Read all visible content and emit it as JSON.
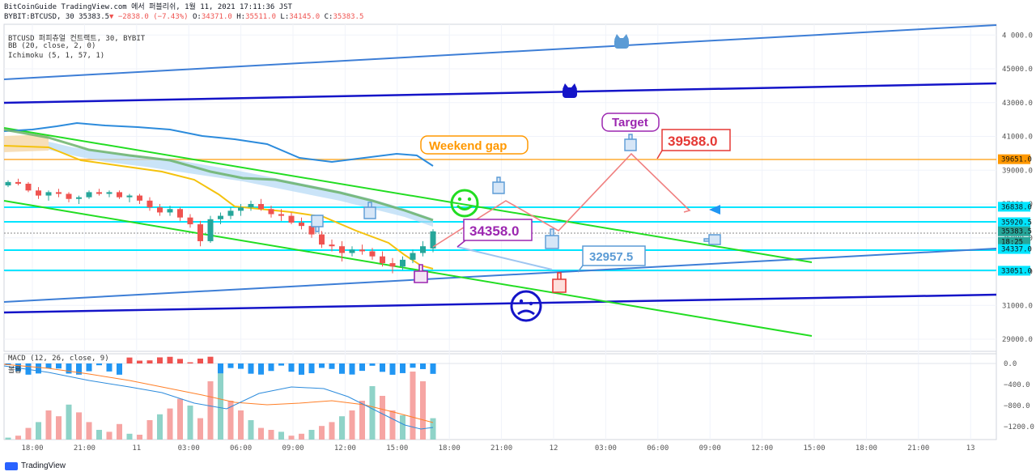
{
  "header": {
    "line1": "BitCoinGuide TradingView.com 에서 퍼블리쉬, 1월 11, 2021 17:11:36 JST",
    "line2_prefix": "BYBIT:BTCUSD, 30 35383.5",
    "change": "−2838.0 (−7.43%)",
    "o_label": "O:",
    "o": "34371.0",
    "h_label": "H:",
    "h": "35511.0",
    "l_label": "L:",
    "l": "34145.0",
    "c_label": "C:",
    "c": "35383.5"
  },
  "legend": {
    "symbol": "BTCUSD 퍼피츄얼 컨트랙트, 30, BYBIT",
    "bb": "BB (20, close, 2, 0)",
    "ichimoku": "Ichimoku (5, 1, 57, 1)",
    "macd": "MACD (12, 26, close, 9)",
    "macd_sub": "볼륨"
  },
  "branding": {
    "tv": "TradingView"
  },
  "colors": {
    "up": "#26a69a",
    "down": "#ef5350",
    "channel_blue": "#3d7ed6",
    "dark_blue": "#1414c8",
    "green": "#22dd22",
    "orange": "#ff9800",
    "cyan": "#00e5ff",
    "bb": "#2c8bdc",
    "ma": "#f4c20d"
  },
  "chart_data": {
    "type": "candlestick",
    "y_axis": {
      "min": 28000,
      "max": 46000,
      "ticks": [
        "29000.0",
        "31000.0",
        "33000.0",
        "35000.0",
        "37000.0",
        "39000.0",
        "41000.0",
        "43000.0",
        "45000.0",
        "4 000.0"
      ]
    },
    "x_axis": {
      "ticks": [
        "18:00",
        "21:00",
        "11",
        "03:00",
        "06:00",
        "09:00",
        "12:00",
        "15:00",
        "18:00",
        "21:00",
        "12",
        "03:00",
        "06:00",
        "09:00",
        "12:00",
        "15:00",
        "18:00",
        "21:00",
        "13"
      ]
    },
    "price_labels": [
      {
        "text": "39651.0",
        "color": "#ff9800"
      },
      {
        "text": "36838.0",
        "color": "#00e5ff"
      },
      {
        "text": "35920.5",
        "color": "#00e5ff"
      },
      {
        "text": "35383.5",
        "color": "#26a69a"
      },
      {
        "text": "18:25",
        "color": "#26a69a"
      },
      {
        "text": "34337.0",
        "color": "#00e5ff"
      },
      {
        "text": "33051.0",
        "color": "#00e5ff"
      }
    ],
    "annotations": [
      {
        "text": "Weekend gap",
        "color": "#ff9800"
      },
      {
        "text": "Target",
        "color": "#9c27b0"
      },
      {
        "text": "39588.0",
        "color": "#e53935"
      },
      {
        "text": "34358.0",
        "color": "#9c27b0"
      },
      {
        "text": "32957.5",
        "color": "#5b9bd5"
      }
    ],
    "macd_axis": {
      "ticks": [
        "0.0",
        "−400.0",
        "−800.0",
        "−1200.0"
      ]
    },
    "candles": [
      [
        38100,
        38400,
        38000,
        38300
      ],
      [
        38300,
        38500,
        38100,
        38200
      ],
      [
        38200,
        38300,
        37700,
        37800
      ],
      [
        37800,
        38000,
        37300,
        37500
      ],
      [
        37500,
        37800,
        37200,
        37700
      ],
      [
        37700,
        37900,
        37400,
        37600
      ],
      [
        37600,
        37700,
        37100,
        37300
      ],
      [
        37300,
        37500,
        37000,
        37400
      ],
      [
        37400,
        37800,
        37300,
        37700
      ],
      [
        37700,
        37900,
        37500,
        37600
      ],
      [
        37600,
        37800,
        37400,
        37700
      ],
      [
        37700,
        37800,
        37300,
        37400
      ],
      [
        37400,
        37600,
        37100,
        37500
      ],
      [
        37500,
        37600,
        37000,
        37200
      ],
      [
        37200,
        37400,
        36600,
        36800
      ],
      [
        36800,
        37000,
        36300,
        36500
      ],
      [
        36500,
        36900,
        36300,
        36700
      ],
      [
        36700,
        36800,
        36000,
        36200
      ],
      [
        36200,
        36400,
        35600,
        35800
      ],
      [
        35800,
        36000,
        34500,
        34800
      ],
      [
        34800,
        36300,
        34700,
        36100
      ],
      [
        36100,
        36500,
        35800,
        36300
      ],
      [
        36300,
        36800,
        36100,
        36600
      ],
      [
        36600,
        37000,
        36300,
        36800
      ],
      [
        36800,
        37200,
        36600,
        37000
      ],
      [
        37000,
        37300,
        36600,
        36700
      ],
      [
        36700,
        36900,
        36200,
        36400
      ],
      [
        36400,
        36700,
        36000,
        36300
      ],
      [
        36300,
        36500,
        35800,
        35900
      ],
      [
        35900,
        36200,
        35500,
        35700
      ],
      [
        35700,
        35900,
        35000,
        35200
      ],
      [
        35200,
        35400,
        34400,
        34600
      ],
      [
        34600,
        34900,
        34200,
        34500
      ],
      [
        34500,
        34800,
        33600,
        34100
      ],
      [
        34100,
        34500,
        33900,
        34300
      ],
      [
        34300,
        34600,
        34000,
        34200
      ],
      [
        34200,
        34400,
        33700,
        33900
      ],
      [
        33900,
        34200,
        33300,
        33500
      ],
      [
        33500,
        33800,
        32900,
        33300
      ],
      [
        33300,
        33900,
        33100,
        33700
      ],
      [
        33700,
        34300,
        33500,
        34100
      ],
      [
        34100,
        34800,
        33900,
        34500
      ],
      [
        34371,
        35511,
        34145,
        35383.5
      ]
    ]
  }
}
